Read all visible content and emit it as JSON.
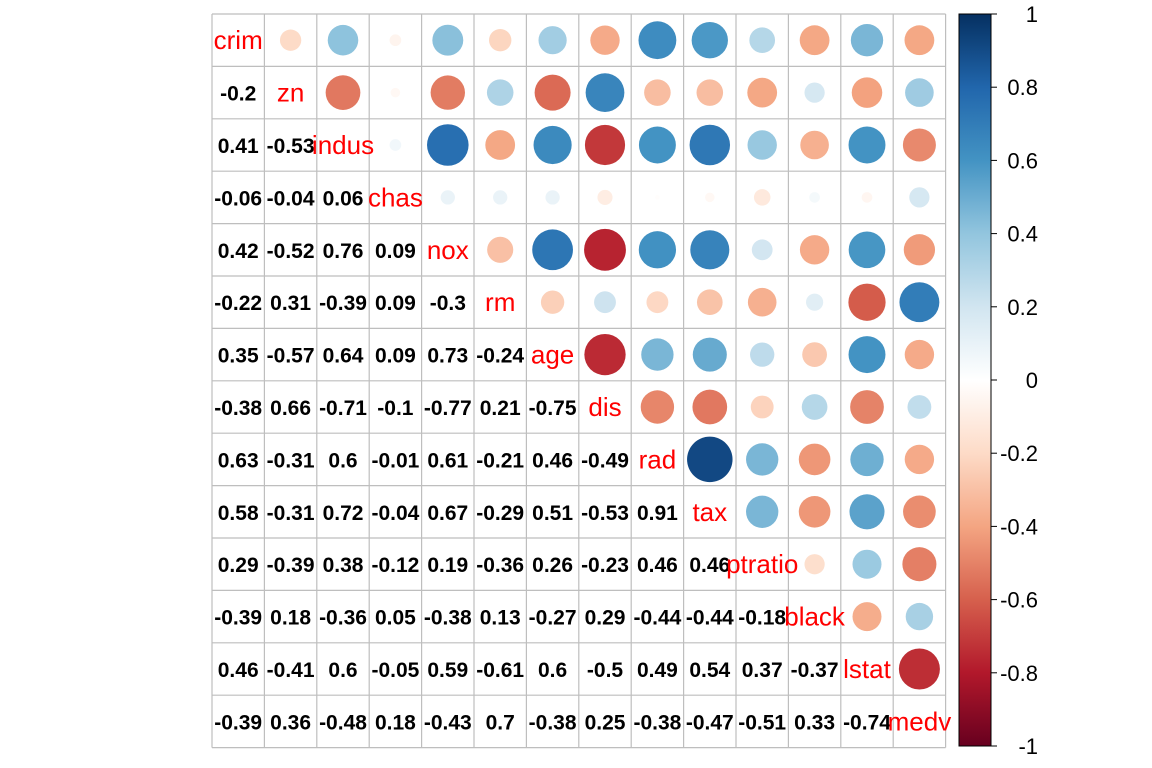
{
  "chart_data": {
    "type": "heatmap",
    "title": "",
    "variables": [
      "crim",
      "zn",
      "indus",
      "chas",
      "nox",
      "rm",
      "age",
      "dis",
      "rad",
      "tax",
      "ptratio",
      "black",
      "lstat",
      "medv"
    ],
    "matrix": [
      [
        1.0,
        -0.2,
        0.41,
        -0.06,
        0.42,
        -0.22,
        0.35,
        -0.38,
        0.63,
        0.58,
        0.29,
        -0.39,
        0.46,
        -0.39
      ],
      [
        -0.2,
        1.0,
        -0.53,
        -0.04,
        -0.52,
        0.31,
        -0.57,
        0.66,
        -0.31,
        -0.31,
        -0.39,
        0.18,
        -0.41,
        0.36
      ],
      [
        0.41,
        -0.53,
        1.0,
        0.06,
        0.76,
        -0.39,
        0.64,
        -0.71,
        0.6,
        0.72,
        0.38,
        -0.36,
        0.6,
        -0.48
      ],
      [
        -0.06,
        -0.04,
        0.06,
        1.0,
        0.09,
        0.09,
        0.09,
        -0.1,
        -0.01,
        -0.04,
        -0.12,
        0.05,
        -0.05,
        0.18
      ],
      [
        0.42,
        -0.52,
        0.76,
        0.09,
        1.0,
        -0.3,
        0.73,
        -0.77,
        0.61,
        0.67,
        0.19,
        -0.38,
        0.59,
        -0.43
      ],
      [
        -0.22,
        0.31,
        -0.39,
        0.09,
        -0.3,
        1.0,
        -0.24,
        0.21,
        -0.21,
        -0.29,
        -0.36,
        0.13,
        -0.61,
        0.7
      ],
      [
        0.35,
        -0.57,
        0.64,
        0.09,
        0.73,
        -0.24,
        1.0,
        -0.75,
        0.46,
        0.51,
        0.26,
        -0.27,
        0.6,
        -0.38
      ],
      [
        -0.38,
        0.66,
        -0.71,
        -0.1,
        -0.77,
        0.21,
        -0.75,
        1.0,
        -0.49,
        -0.53,
        -0.23,
        0.29,
        -0.5,
        0.25
      ],
      [
        0.63,
        -0.31,
        0.6,
        -0.01,
        0.61,
        -0.21,
        0.46,
        -0.49,
        1.0,
        0.91,
        0.46,
        -0.44,
        0.49,
        -0.38
      ],
      [
        0.58,
        -0.31,
        0.72,
        -0.04,
        0.67,
        -0.29,
        0.51,
        -0.53,
        0.91,
        1.0,
        0.46,
        -0.44,
        0.54,
        -0.47
      ],
      [
        0.29,
        -0.39,
        0.38,
        -0.12,
        0.19,
        -0.36,
        0.26,
        -0.23,
        0.46,
        0.46,
        1.0,
        -0.18,
        0.37,
        -0.51
      ],
      [
        -0.39,
        0.18,
        -0.36,
        0.05,
        -0.38,
        0.13,
        -0.27,
        0.29,
        -0.44,
        -0.44,
        -0.18,
        1.0,
        -0.37,
        0.33
      ],
      [
        0.46,
        -0.41,
        0.6,
        -0.05,
        0.59,
        -0.61,
        0.6,
        -0.5,
        0.49,
        0.54,
        0.37,
        -0.37,
        1.0,
        -0.74
      ],
      [
        -0.39,
        0.36,
        -0.48,
        0.18,
        -0.43,
        0.7,
        -0.38,
        0.25,
        -0.38,
        -0.47,
        -0.51,
        0.33,
        -0.74,
        1.0
      ]
    ],
    "lower_triangle": "numbers",
    "upper_triangle": "circles",
    "diagonal": "variable labels",
    "grid": true,
    "colorbar": {
      "range": [
        -1,
        1
      ],
      "ticks": [
        "1",
        "0.8",
        "0.6",
        "0.4",
        "0.2",
        "0",
        "-0.2",
        "-0.4",
        "-0.6",
        "-0.8",
        "-1"
      ],
      "placement": "right"
    },
    "colors": {
      "negative_strong": "#67001F",
      "negative_mid": "#D6604D",
      "neutral": "#FFFFFF",
      "positive_mid": "#4393C3",
      "positive_strong": "#053061",
      "diagonal_label": "#FF0000",
      "number_text": "#000000",
      "grid_line": "#BEBEBE"
    }
  }
}
